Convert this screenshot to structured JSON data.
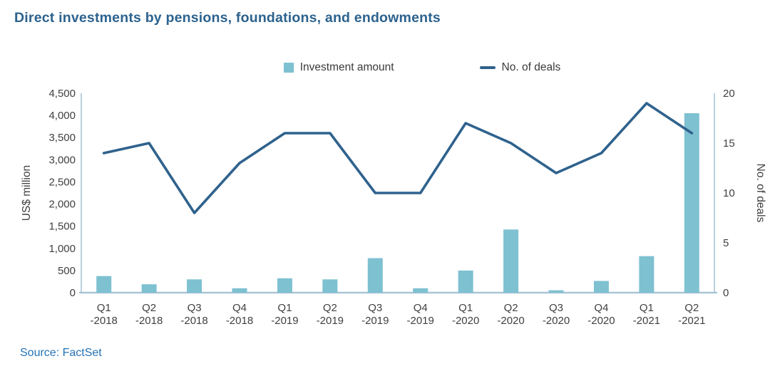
{
  "title": "Direct investments by pensions, foundations, and endowments",
  "source": "Source: FactSet",
  "legend": [
    {
      "label": "Investment amount",
      "swatch": "square"
    },
    {
      "label": "No. of deals",
      "swatch": "line"
    }
  ],
  "colors": {
    "bar": "#7EC1D1",
    "line": "#2F628D",
    "axis": "#A9C4D6",
    "tick_text": "#404040",
    "title_text": "#2C628E",
    "source_text": "#2573B5"
  },
  "chart_data": {
    "type": "bar+line combo",
    "title": "Direct investments by pensions, foundations, and endowments",
    "categories": [
      "Q1-2018",
      "Q2-2018",
      "Q3-2018",
      "Q4-2018",
      "Q1-2019",
      "Q2-2019",
      "Q3-2019",
      "Q4-2019",
      "Q1-2020",
      "Q2-2020",
      "Q3-2020",
      "Q4-2020",
      "Q1-2021",
      "Q2-2021"
    ],
    "category_label_lines": [
      [
        "Q1",
        "-2018"
      ],
      [
        "Q2",
        "-2018"
      ],
      [
        "Q3",
        "-2018"
      ],
      [
        "Q4",
        "-2018"
      ],
      [
        "Q1",
        "-2019"
      ],
      [
        "Q2",
        "-2019"
      ],
      [
        "Q3",
        "-2019"
      ],
      [
        "Q4",
        "-2019"
      ],
      [
        "Q1",
        "-2020"
      ],
      [
        "Q2",
        "-2020"
      ],
      [
        "Q3",
        "-2020"
      ],
      [
        "Q4",
        "-2020"
      ],
      [
        "Q1",
        "-2021"
      ],
      [
        "Q2",
        "-2021"
      ]
    ],
    "series": [
      {
        "name": "Investment amount",
        "type": "bar",
        "axis": "left",
        "values": [
          375,
          190,
          300,
          100,
          325,
          300,
          780,
          100,
          500,
          1425,
          55,
          265,
          825,
          4050
        ]
      },
      {
        "name": "No. of deals",
        "type": "line",
        "axis": "right",
        "values": [
          14,
          15,
          8,
          13,
          16,
          16,
          10,
          10,
          17,
          15,
          12,
          14,
          19,
          16
        ]
      }
    ],
    "left_axis": {
      "label": "US$ million",
      "min": 0,
      "max": 4500,
      "ticks": [
        "0",
        "500",
        "1,000",
        "1,500",
        "2,000",
        "2,500",
        "3,000",
        "3,500",
        "4,000",
        "4,500"
      ]
    },
    "right_axis": {
      "label": "No. of deals",
      "min": 0,
      "max": 20,
      "ticks": [
        "0",
        "5",
        "10",
        "15",
        "20"
      ]
    },
    "legend_position": "top",
    "grid": false
  }
}
